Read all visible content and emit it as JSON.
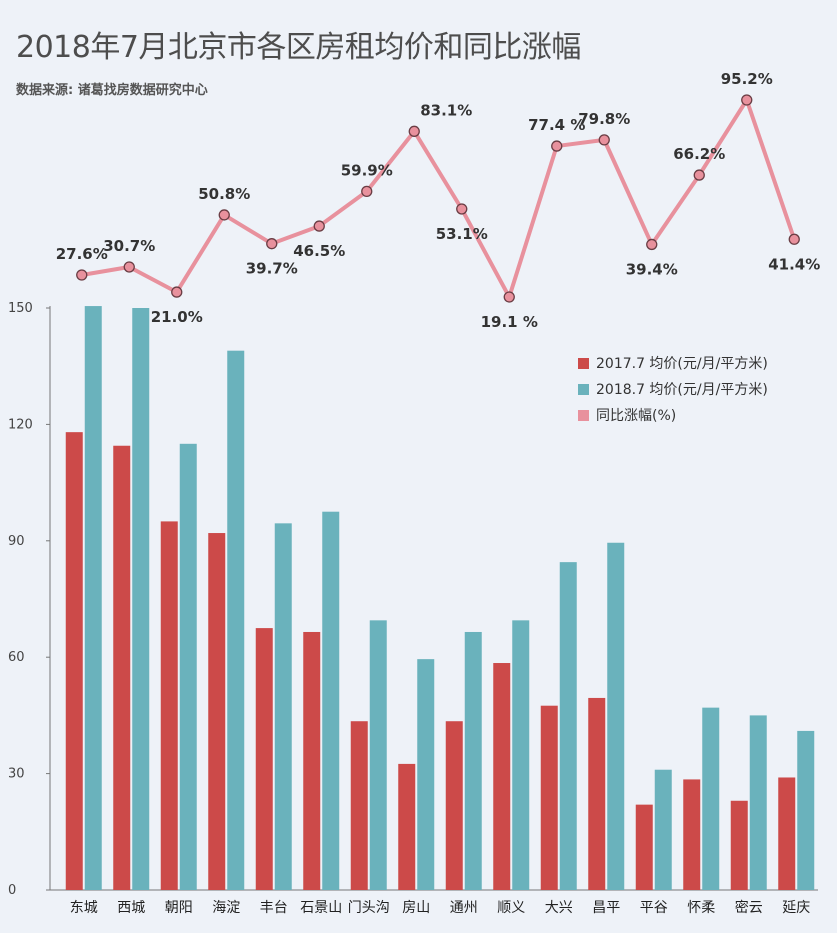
{
  "title": "2018年7月北京市各区房租均价和同比涨幅",
  "source": "数据来源: 诸葛找房数据研究中心",
  "colors": {
    "s2017": "#cc4a49",
    "s2018": "#6ab2bc",
    "growth": "#e8919d"
  },
  "chart_data": {
    "type": "bar",
    "categories": [
      "东城",
      "西城",
      "朝阳",
      "海淀",
      "丰台",
      "石景山",
      "门头沟",
      "房山",
      "通州",
      "顺义",
      "大兴",
      "昌平",
      "平谷",
      "怀柔",
      "密云",
      "延庆"
    ],
    "series": [
      {
        "name": "2017.7 均价(元/月/平方米)",
        "values": [
          118,
          114.5,
          95,
          92,
          67.5,
          66.5,
          43.5,
          32.5,
          43.5,
          58.5,
          47.5,
          49.5,
          22,
          28.5,
          23,
          29
        ]
      },
      {
        "name": "2018.7 均价(元/月/平方米)",
        "values": [
          150.5,
          150,
          115,
          139,
          94.5,
          97.5,
          69.5,
          59.5,
          66.5,
          69.5,
          84.5,
          89.5,
          31,
          47,
          45,
          41
        ]
      }
    ],
    "growth_series": {
      "name": "同比涨幅(%)",
      "values": [
        27.6,
        30.7,
        21.0,
        50.8,
        39.7,
        46.5,
        59.9,
        83.1,
        53.1,
        19.1,
        77.4,
        79.8,
        39.4,
        66.2,
        95.2,
        41.4
      ],
      "labels": [
        "27.6%",
        "30.7%",
        "21.0%",
        "50.8%",
        "39.7%",
        "46.5%",
        "59.9%",
        "83.1%",
        "53.1%",
        "19.1 %",
        "77.4 %",
        "79.8%",
        "39.4%",
        "66.2%",
        "95.2%",
        "41.4%"
      ]
    },
    "yticks": [
      0,
      30,
      60,
      90,
      120,
      150
    ],
    "ylim": [
      0,
      150
    ]
  }
}
